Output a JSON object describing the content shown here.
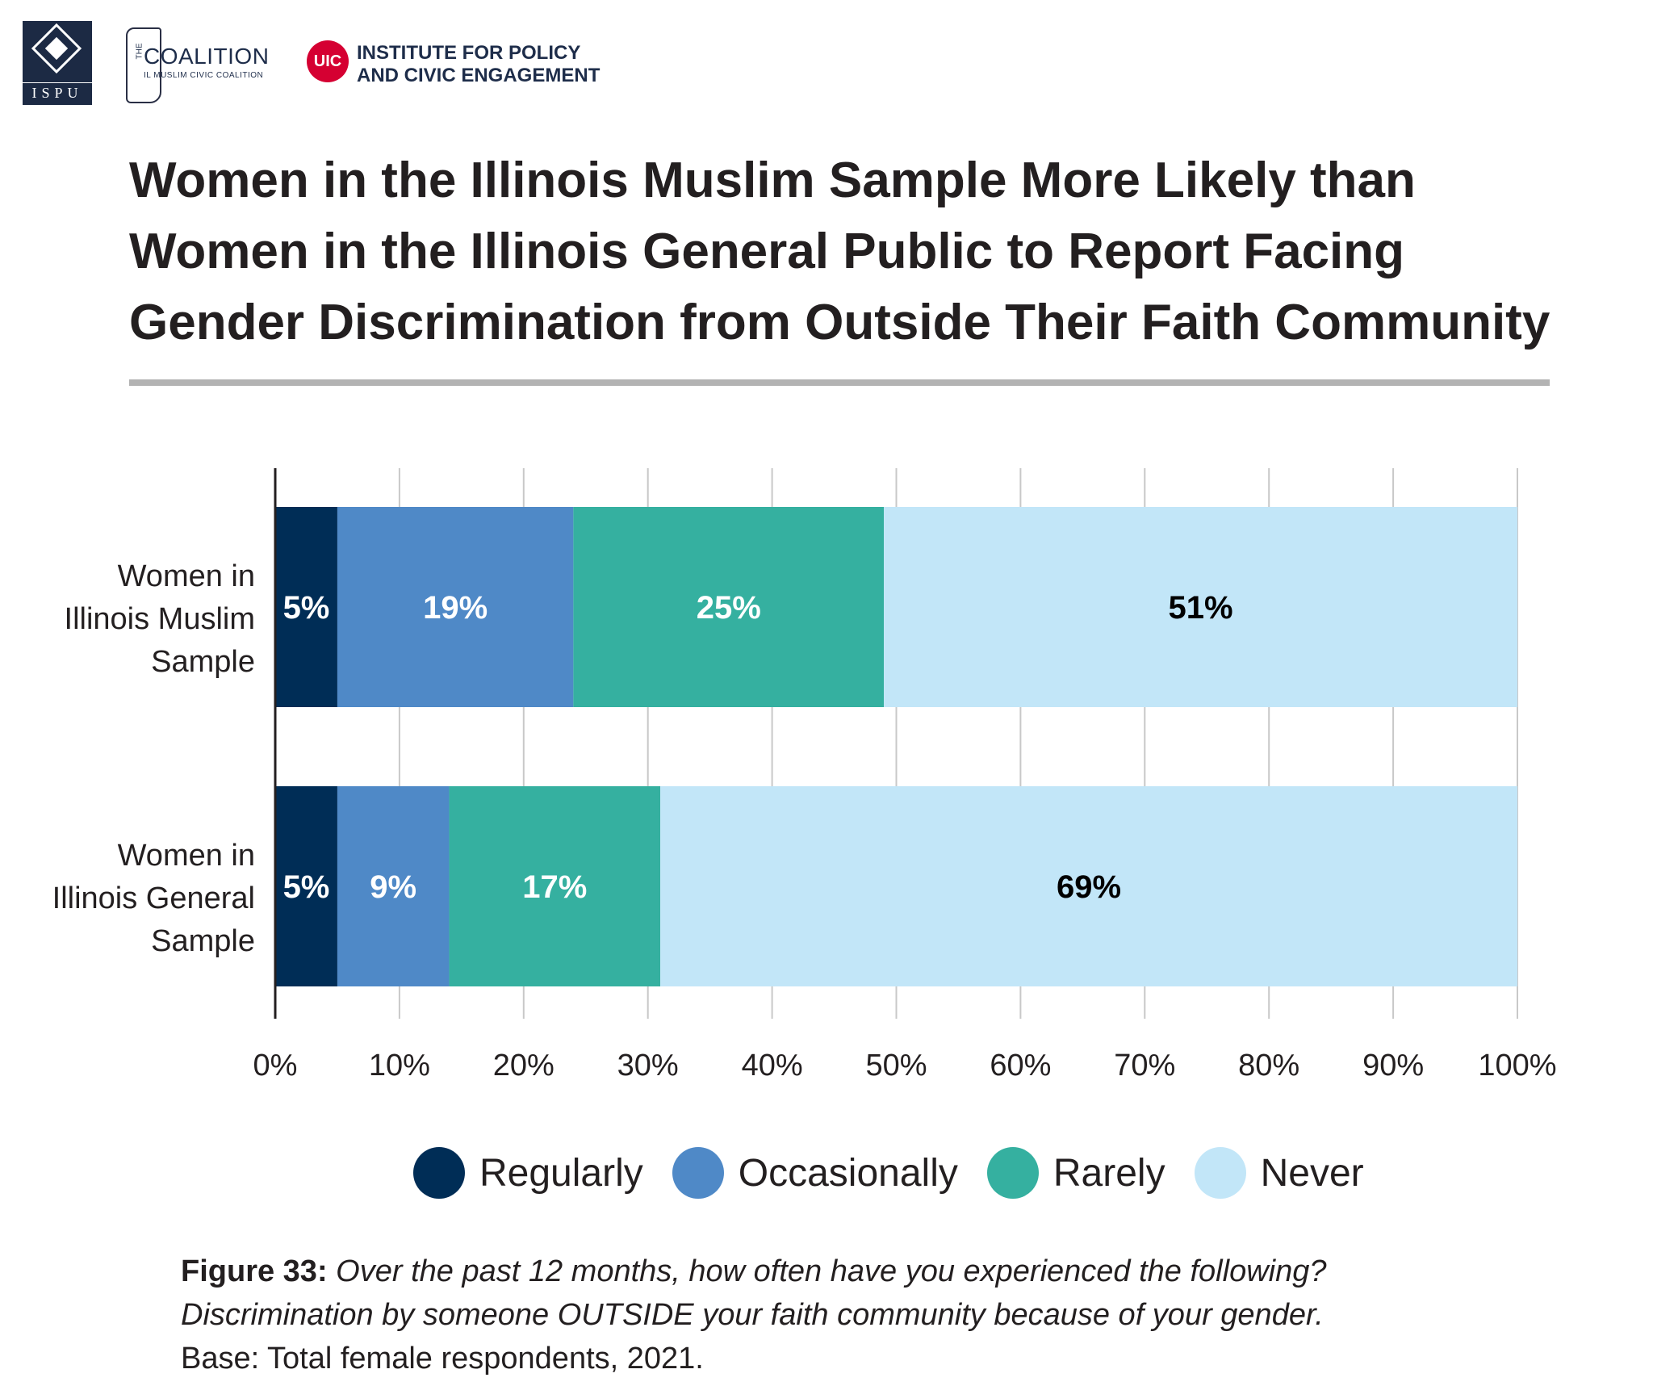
{
  "logos": {
    "ispu": "ISPU",
    "coalition_title": "COALITION",
    "coalition_the": "THE",
    "coalition_sub": "IL MUSLIM CIVIC COALITION",
    "uic_badge": "UIC",
    "uic_line1": "INSTITUTE FOR POLICY",
    "uic_line2": "AND CIVIC ENGAGEMENT"
  },
  "title_lines": [
    "Women in the Illinois Muslim Sample More Likely than",
    "Women in the Illinois General Public to Report Facing",
    "Gender Discrimination from Outside Their Faith Community"
  ],
  "colors": {
    "regularly": "#002d56",
    "occasionally": "#4f89c7",
    "rarely": "#35b0a0",
    "never": "#c2e6f8",
    "grid": "#c8c8c8",
    "axis": "#231f20"
  },
  "chart_data": {
    "type": "bar",
    "orientation": "horizontal",
    "stacked": true,
    "categories": [
      [
        "Women in",
        "Illinois Muslim",
        "Sample"
      ],
      [
        "Women in",
        "Illinois General",
        "Sample"
      ]
    ],
    "series": [
      {
        "name": "Regularly",
        "values": [
          5,
          5
        ],
        "labels": [
          "5%",
          "5%"
        ],
        "label_color": "#ffffff"
      },
      {
        "name": "Occasionally",
        "values": [
          19,
          9
        ],
        "labels": [
          "19%",
          "9%"
        ],
        "label_color": "#ffffff"
      },
      {
        "name": "Rarely",
        "values": [
          25,
          17
        ],
        "labels": [
          "25%",
          "17%"
        ],
        "label_color": "#ffffff"
      },
      {
        "name": "Never",
        "values": [
          51,
          69
        ],
        "labels": [
          "51%",
          "69%"
        ],
        "label_color": "#000000"
      }
    ],
    "xlim": [
      0,
      100
    ],
    "xticks": [
      "0%",
      "10%",
      "20%",
      "30%",
      "40%",
      "50%",
      "60%",
      "70%",
      "80%",
      "90%",
      "100%"
    ],
    "grid": true,
    "legend_position": "bottom"
  },
  "legend": [
    "Regularly",
    "Occasionally",
    "Rarely",
    "Never"
  ],
  "caption": {
    "label": "Figure 33:",
    "question_line1": "Over the past 12 months, how often have you experienced the following?",
    "question_line2": "Discrimination by someone OUTSIDE your faith community because of your gender.",
    "base": "Base: Total female respondents, 2021."
  }
}
